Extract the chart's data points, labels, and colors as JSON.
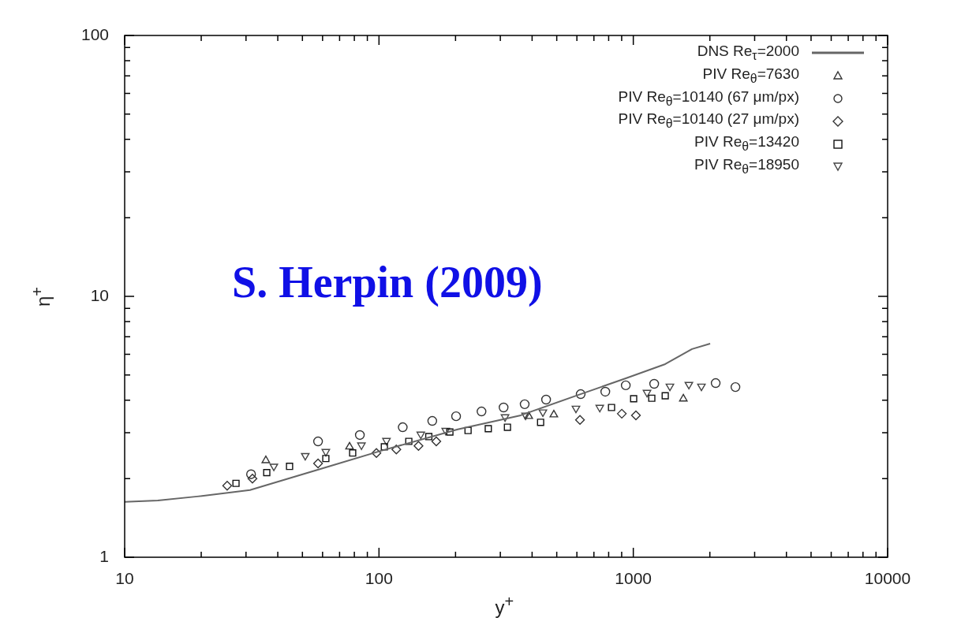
{
  "chart_data": {
    "type": "scatter",
    "xlabel": "y$^{+}$",
    "ylabel": "η$^{+}$",
    "annotations": [
      "S. Herpin (2009)"
    ],
    "log": "xy",
    "grid": false,
    "legend": "top right",
    "xlim": [
      10,
      10000
    ],
    "ylim": [
      1,
      100
    ],
    "xticks": [
      10,
      {
        "value": 20,
        "label": null
      },
      {
        "value": 30,
        "label": null
      },
      {
        "value": 40,
        "label": null
      },
      {
        "value": 50,
        "label": null
      },
      {
        "value": 60,
        "label": null
      },
      {
        "value": 70,
        "label": null
      },
      {
        "value": 80,
        "label": null
      },
      {
        "value": 90,
        "label": null
      },
      100,
      {
        "value": 200,
        "label": null
      },
      {
        "value": 300,
        "label": null
      },
      {
        "value": 400,
        "label": null
      },
      {
        "value": 500,
        "label": null
      },
      {
        "value": 600,
        "label": null
      },
      {
        "value": 700,
        "label": null
      },
      {
        "value": 800,
        "label": null
      },
      {
        "value": 900,
        "label": null
      },
      1000,
      {
        "value": 2000,
        "label": null
      },
      {
        "value": 3000,
        "label": null
      },
      {
        "value": 4000,
        "label": null
      },
      {
        "value": 5000,
        "label": null
      },
      {
        "value": 6000,
        "label": null
      },
      {
        "value": 7000,
        "label": null
      },
      {
        "value": 8000,
        "label": null
      },
      {
        "value": 9000,
        "label": null
      },
      10000
    ],
    "yticks": [
      1,
      {
        "value": 2,
        "label": null
      },
      {
        "value": 3,
        "label": null
      },
      {
        "value": 4,
        "label": null
      },
      {
        "value": 5,
        "label": null
      },
      {
        "value": 6,
        "label": null
      },
      {
        "value": 7,
        "label": null
      },
      {
        "value": 8,
        "label": null
      },
      {
        "value": 9,
        "label": null
      },
      10,
      {
        "value": 20,
        "label": null
      },
      {
        "value": 30,
        "label": null
      },
      {
        "value": 40,
        "label": null
      },
      {
        "value": 50,
        "label": null
      },
      {
        "value": 60,
        "label": null
      },
      {
        "value": 70,
        "label": null
      },
      {
        "value": 80,
        "label": null
      },
      {
        "value": 90,
        "label": null
      },
      100
    ],
    "series": [
      {
        "name": "DNS Re$_{τ}$=2000",
        "type": "line",
        "marker": "none",
        "color": "#666666",
        "x": [
          10,
          13.5,
          19.3,
          31.1,
          63.6,
          102,
          204,
          361,
          583,
          934,
          1335,
          1701,
          2005
        ],
        "values": [
          1.63,
          1.65,
          1.71,
          1.81,
          2.23,
          2.56,
          3.09,
          3.5,
          4.13,
          4.85,
          5.5,
          6.28,
          6.59
        ]
      },
      {
        "name": "PIV Re$_{θ}$=7630",
        "marker": "triangle",
        "color": "#333333",
        "x": [
          35.9,
          76.6,
          388,
          487,
          1573
        ],
        "values": [
          2.35,
          2.65,
          3.47,
          3.52,
          4.05
        ]
      },
      {
        "name": "PIV Re$_{θ}$=10140 (67 μm/px)",
        "marker": "circle",
        "color": "#333333",
        "x": [
          31.4,
          57.6,
          84.1,
          124,
          162,
          201,
          253,
          309,
          374,
          454,
          621,
          776,
          934,
          1208,
          2108,
          2521
        ],
        "values": [
          2.08,
          2.78,
          2.94,
          3.15,
          3.33,
          3.47,
          3.62,
          3.75,
          3.86,
          4.02,
          4.22,
          4.31,
          4.56,
          4.62,
          4.65,
          4.49
        ]
      },
      {
        "name": "PIV Re$_{θ}$=10140 (27 μm/px)",
        "marker": "diamond",
        "color": "#333333",
        "x": [
          25.3,
          31.8,
          57.6,
          97.7,
          117,
          143,
          168,
          617,
          901,
          1024
        ],
        "values": [
          1.88,
          2.0,
          2.29,
          2.51,
          2.59,
          2.67,
          2.78,
          3.36,
          3.55,
          3.5
        ]
      },
      {
        "name": "PIV Re$_{θ}$=13420",
        "marker": "square",
        "color": "#111111",
        "x": [
          27.4,
          36.2,
          44.5,
          61.8,
          78.8,
          105,
          131,
          157,
          190,
          224,
          269,
          320,
          432,
          821,
          1003,
          1182,
          1335
        ],
        "values": [
          1.92,
          2.11,
          2.23,
          2.39,
          2.51,
          2.65,
          2.78,
          2.9,
          3.02,
          3.06,
          3.11,
          3.15,
          3.29,
          3.75,
          4.05,
          4.07,
          4.16
        ]
      },
      {
        "name": "PIV Re$_{θ}$=18950",
        "marker": "triangle-down",
        "color": "#444444",
        "x": [
          38.6,
          51.3,
          61.8,
          85.3,
          107,
          146,
          183,
          313,
          377,
          441,
          595,
          738,
          1132,
          1393,
          1654,
          1853
        ],
        "values": [
          2.23,
          2.45,
          2.54,
          2.69,
          2.8,
          2.96,
          3.06,
          3.45,
          3.5,
          3.6,
          3.72,
          3.75,
          4.28,
          4.52,
          4.59,
          4.52
        ]
      }
    ]
  }
}
